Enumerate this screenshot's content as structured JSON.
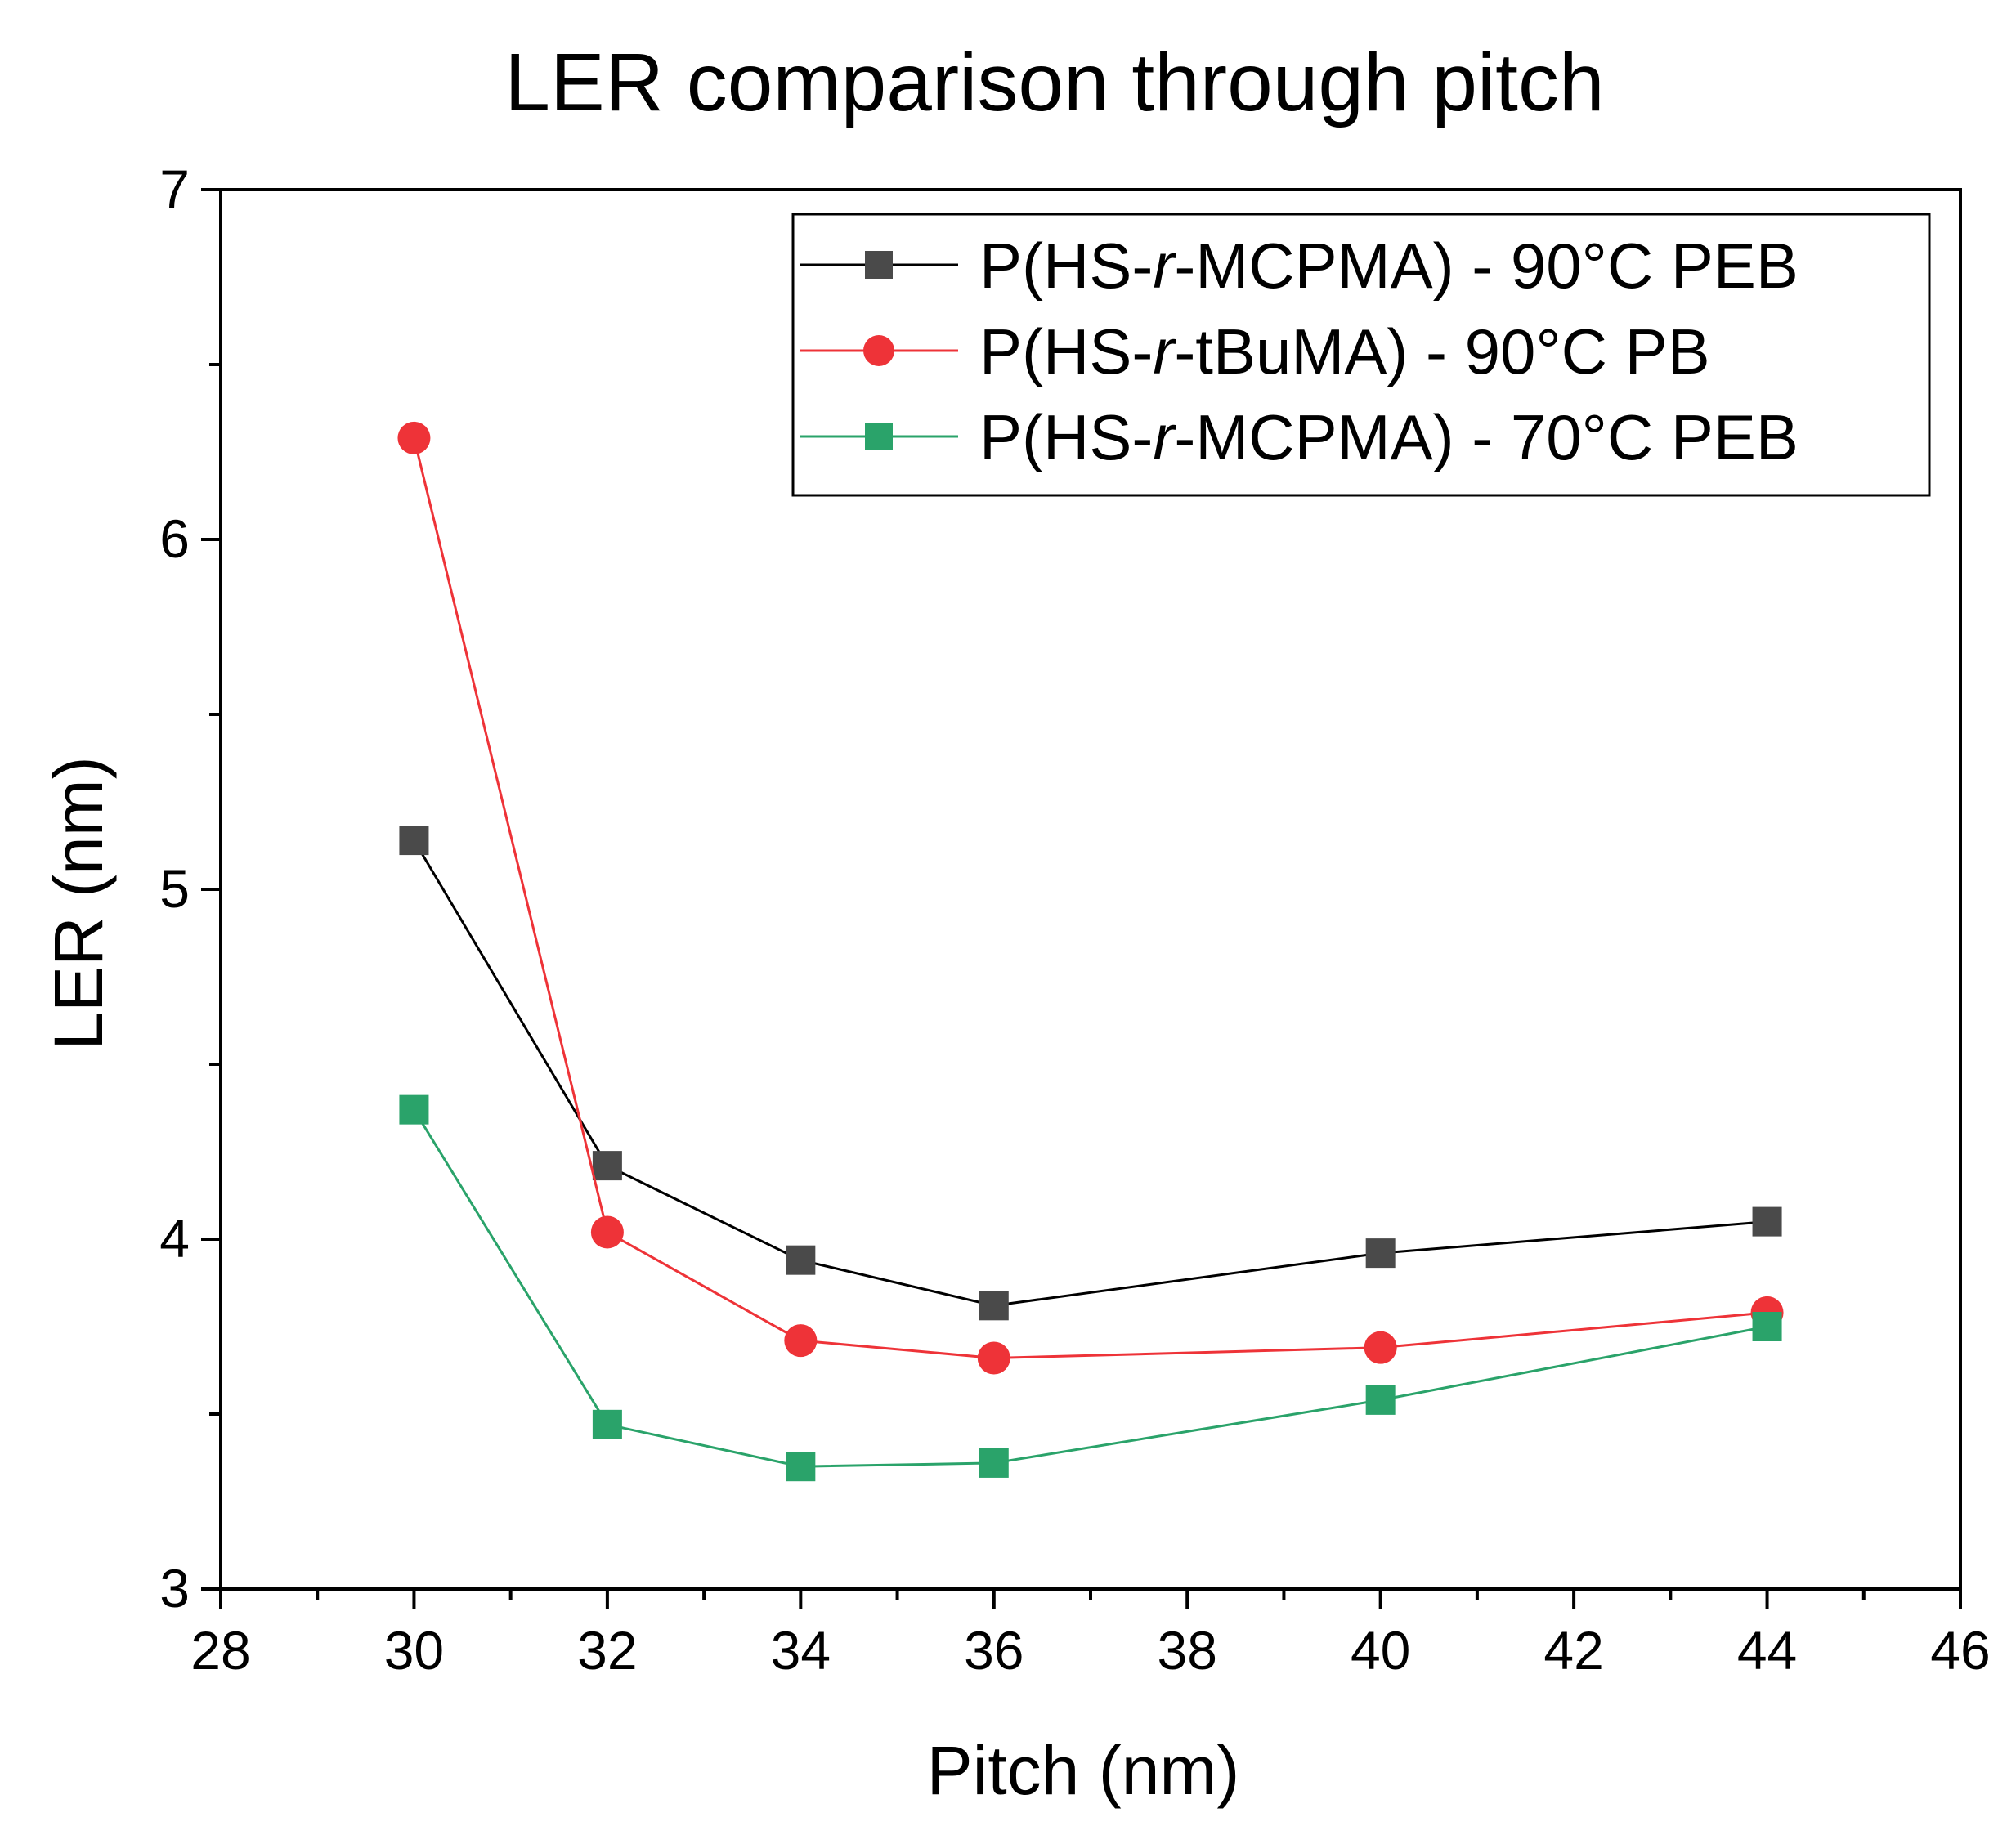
{
  "chart_data": {
    "type": "line",
    "title": "LER comparison through pitch",
    "xlabel": "Pitch (nm)",
    "ylabel": "LER (nm)",
    "xlim": [
      28,
      46
    ],
    "ylim": [
      3,
      7
    ],
    "x_ticks": [
      28,
      30,
      32,
      34,
      36,
      38,
      40,
      42,
      44,
      46
    ],
    "y_ticks": [
      3,
      4,
      5,
      6,
      7
    ],
    "grid": false,
    "legend_position": "top-right",
    "x": [
      30,
      32,
      34,
      36,
      40,
      44
    ],
    "series": [
      {
        "name_parts": [
          "P(HS-",
          "r",
          "-MCPMA) - 90°C PEB"
        ],
        "marker": "square",
        "color": "#4a4a4a",
        "line_color": "#000000",
        "values": [
          5.14,
          4.21,
          3.94,
          3.81,
          3.96,
          4.05
        ]
      },
      {
        "name_parts": [
          "P(HS-",
          "r",
          "-tBuMA) - 90°C PB"
        ],
        "marker": "circle",
        "color": "#ee3338",
        "line_color": "#ee3338",
        "values": [
          6.29,
          4.02,
          3.71,
          3.66,
          3.69,
          3.79
        ]
      },
      {
        "name_parts": [
          "P(HS-",
          "r",
          "-MCPMA) - 70°C PEB"
        ],
        "marker": "square",
        "color": "#2aa36a",
        "line_color": "#2aa36a",
        "values": [
          4.37,
          3.47,
          3.35,
          3.36,
          3.54,
          3.75
        ]
      }
    ]
  }
}
